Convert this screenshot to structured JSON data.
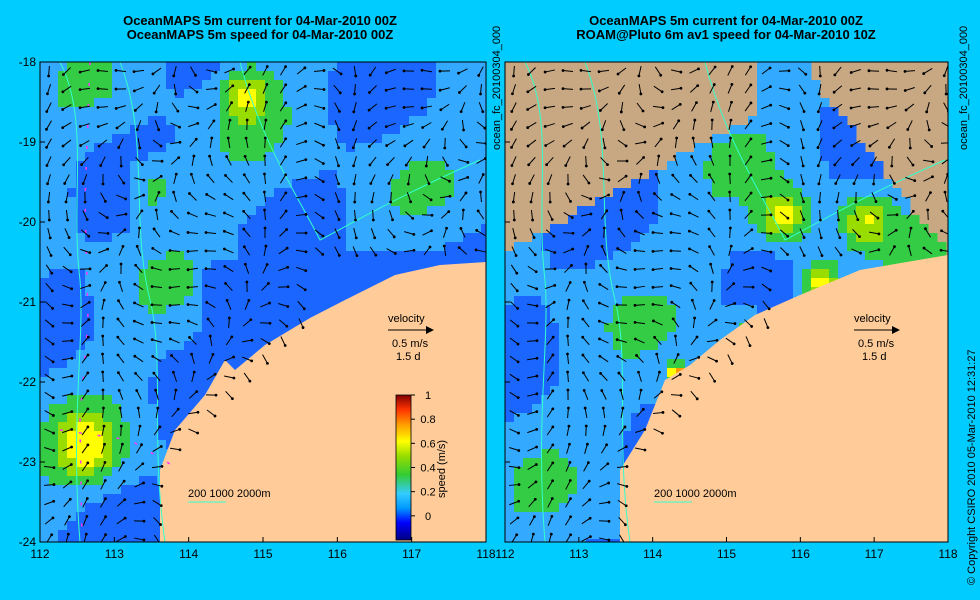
{
  "colors": {
    "background": "#00ccff",
    "land": "#ffcc99",
    "shelf": "#c8a882",
    "contour": "#33ffcc",
    "track": "#ff33ff",
    "frame": "#000000"
  },
  "panels": [
    {
      "id": "left",
      "title_line1": "OceanMAPS 5m current for 04-Mar-2010 00Z",
      "title_line2": "OceanMAPS 5m speed for 04-Mar-2010 00Z",
      "side_label": "ocean_fc_20100304_000",
      "velocity_label": "velocity",
      "velocity_speed": "0.5 m/s",
      "velocity_time": "1.5 d",
      "isobath_label": "200  1000  2000m"
    },
    {
      "id": "right",
      "title_line1": "OceanMAPS 5m current for 04-Mar-2010 00Z",
      "title_line2": "ROAM@Pluto 6m av1 speed for 04-Mar-2010 10Z",
      "side_label": "ocean_fc_20100304_000",
      "velocity_label": "velocity",
      "velocity_speed": "0.5 m/s",
      "velocity_time": "1.5 d",
      "isobath_label": "200  1000  2000m"
    }
  ],
  "copyright": "© Copyright CSIRO 2010   05-Mar-2010 12:31:27",
  "axes": {
    "lon_ticks": [
      "112",
      "113",
      "114",
      "115",
      "116",
      "117",
      "118"
    ],
    "lat_ticks": [
      "-18",
      "-19",
      "-20",
      "-21",
      "-22",
      "-23",
      "-24"
    ],
    "lon_range": [
      112,
      118
    ],
    "lat_range": [
      -24,
      -18
    ]
  },
  "colorbar": {
    "label": "speed (m/s)",
    "ticks": [
      "1",
      "0.8",
      "0.6",
      "0.4",
      "0.2",
      "0"
    ],
    "range": [
      -0.2,
      1.0
    ]
  }
}
